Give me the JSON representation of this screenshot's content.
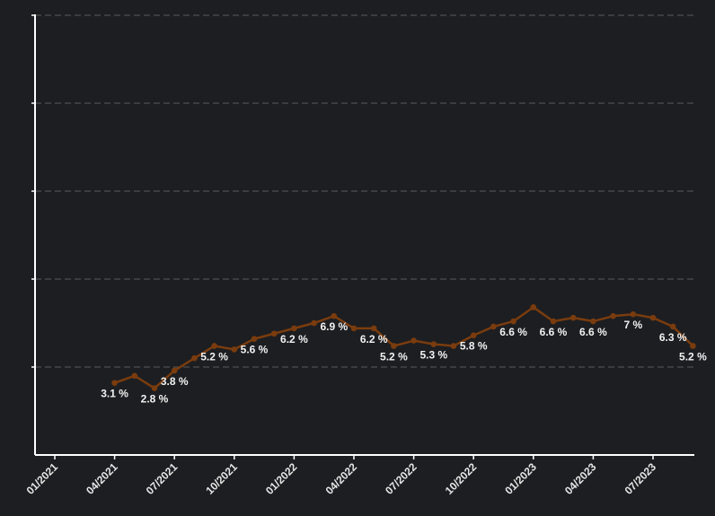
{
  "chart_data": {
    "type": "line",
    "title": "",
    "xlabel": "",
    "ylabel": "",
    "grid": true,
    "colors": {
      "background": "#1d1e21",
      "line": "#7a3c0e",
      "grid": "#5a5a5a",
      "axis": "#ffffff",
      "label": "#f2f2f2"
    },
    "x_tick_labels": [
      "01/2021",
      "04/2021",
      "07/2021",
      "10/2021",
      "01/2022",
      "04/2022",
      "07/2022",
      "10/2022",
      "01/2023",
      "04/2023",
      "07/2023"
    ],
    "ylim": [
      -1,
      24
    ],
    "series": [
      {
        "points": [
          {
            "x": "2021-04",
            "y": 3.1,
            "label": "3.1 %"
          },
          {
            "x": "2021-05",
            "y": 3.5
          },
          {
            "x": "2021-06",
            "y": 2.8,
            "label": "2.8 %"
          },
          {
            "x": "2021-07",
            "y": 3.8,
            "label": "3.8 %"
          },
          {
            "x": "2021-08",
            "y": 4.5
          },
          {
            "x": "2021-09",
            "y": 5.2,
            "label": "5.2 %"
          },
          {
            "x": "2021-10",
            "y": 5.0
          },
          {
            "x": "2021-11",
            "y": 5.6,
            "label": "5.6 %"
          },
          {
            "x": "2021-12",
            "y": 5.9
          },
          {
            "x": "2022-01",
            "y": 6.2,
            "label": "6.2 %"
          },
          {
            "x": "2022-02",
            "y": 6.5
          },
          {
            "x": "2022-03",
            "y": 6.9,
            "label": "6.9 %"
          },
          {
            "x": "2022-04",
            "y": 6.2
          },
          {
            "x": "2022-05",
            "y": 6.2,
            "label": "6.2 %"
          },
          {
            "x": "2022-06",
            "y": 5.2,
            "label": "5.2 %"
          },
          {
            "x": "2022-07",
            "y": 5.5
          },
          {
            "x": "2022-08",
            "y": 5.3,
            "label": "5.3 %"
          },
          {
            "x": "2022-09",
            "y": 5.2
          },
          {
            "x": "2022-10",
            "y": 5.8,
            "label": "5.8 %"
          },
          {
            "x": "2022-11",
            "y": 6.3
          },
          {
            "x": "2022-12",
            "y": 6.6,
            "label": "6.6 %"
          },
          {
            "x": "2023-01",
            "y": 7.4
          },
          {
            "x": "2023-02",
            "y": 6.6,
            "label": "6.6 %"
          },
          {
            "x": "2023-03",
            "y": 6.8
          },
          {
            "x": "2023-04",
            "y": 6.6,
            "label": "6.6 %"
          },
          {
            "x": "2023-05",
            "y": 6.9
          },
          {
            "x": "2023-06",
            "y": 7.0,
            "label": "7 %"
          },
          {
            "x": "2023-07",
            "y": 6.8
          },
          {
            "x": "2023-08",
            "y": 6.3,
            "label": "6.3 %"
          },
          {
            "x": "2023-09",
            "y": 5.2,
            "label": "5.2 %"
          }
        ]
      }
    ]
  }
}
